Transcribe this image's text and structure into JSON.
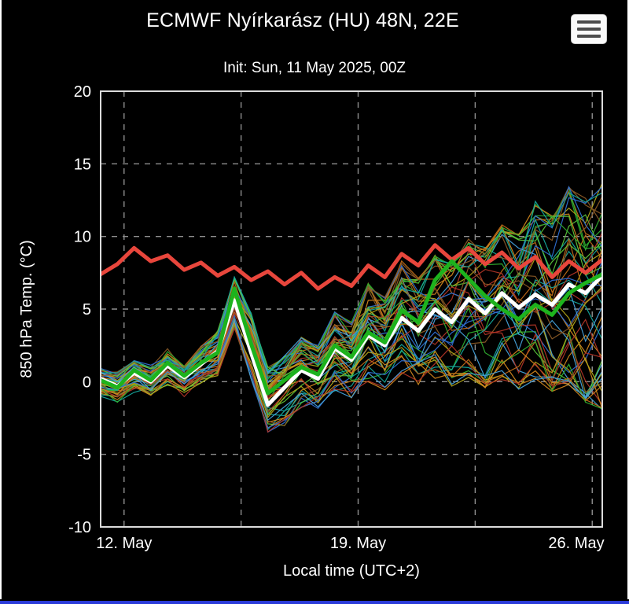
{
  "theme": {
    "background": "#000000",
    "text_color": "#ffffff",
    "accent_bar_color": "#2b3bd8",
    "menu_button_bg": "#fafafa",
    "menu_button_stripe_color": "#4d4d4d",
    "grid_color": "#8f8f8f",
    "plot_border_color": "#dcdcdc"
  },
  "header": {
    "menu_icon": "hamburger"
  },
  "chart_data": {
    "type": "line",
    "title": "ECMWF Nyírkarász (HU) 48N, 22E",
    "subtitle": "Init: Sun, 11 May 2025, 00Z",
    "xlabel": "Local time (UTC+2)",
    "ylabel": "850 hPa Temp. (°C)",
    "x_domain_days": [
      0.3,
      15.3
    ],
    "ylim": [
      -10,
      20
    ],
    "y_ticks": [
      20,
      15,
      10,
      5,
      0,
      -5,
      -10
    ],
    "x_ticks": [
      {
        "t": 1,
        "label": "12. May"
      },
      {
        "t": 8,
        "label": "19. May"
      },
      {
        "t": 15,
        "label": "26. May"
      }
    ],
    "x_gridlines_t": [
      1,
      4.5,
      8,
      11.5,
      15
    ],
    "grid_color": "#8f8f8f",
    "legend": "none",
    "t": [
      0.3,
      0.8,
      1.3,
      1.8,
      2.3,
      2.8,
      3.3,
      3.8,
      4.3,
      4.8,
      5.3,
      5.8,
      6.3,
      6.8,
      7.3,
      7.8,
      8.3,
      8.8,
      9.3,
      9.8,
      10.3,
      10.8,
      11.3,
      11.8,
      12.3,
      12.8,
      13.3,
      13.8,
      14.3,
      14.8,
      15.3
    ],
    "highlight_series": [
      {
        "name": "thick-red",
        "color": "#e8463c",
        "width": 5,
        "values": [
          7.4,
          8.1,
          9.2,
          8.3,
          8.7,
          7.7,
          8.2,
          7.3,
          7.9,
          7.0,
          7.6,
          6.7,
          7.5,
          6.4,
          7.2,
          6.6,
          8.0,
          7.2,
          8.8,
          8.0,
          9.4,
          8.4,
          9.2,
          8.1,
          8.9,
          7.8,
          8.6,
          7.2,
          8.3,
          7.5,
          8.4
        ]
      },
      {
        "name": "thick-white",
        "color": "#ffffff",
        "width": 5,
        "values": [
          0.2,
          -0.3,
          0.6,
          0.0,
          1.1,
          0.3,
          1.2,
          2.1,
          5.6,
          2.0,
          -1.6,
          -0.4,
          0.8,
          0.2,
          2.3,
          1.5,
          3.2,
          2.5,
          4.4,
          3.5,
          5.0,
          4.1,
          5.7,
          4.7,
          6.1,
          5.1,
          6.0,
          5.3,
          6.7,
          6.1,
          7.3
        ]
      },
      {
        "name": "thick-green",
        "color": "#1db31d",
        "width": 5,
        "values": [
          0.1,
          -0.4,
          0.8,
          0.1,
          1.3,
          0.4,
          1.3,
          2.0,
          6.4,
          2.6,
          -0.8,
          0.1,
          1.0,
          0.5,
          2.5,
          1.7,
          3.4,
          2.7,
          4.9,
          4.1,
          7.0,
          8.3,
          7.1,
          5.9,
          5.0,
          4.3,
          5.3,
          4.6,
          6.1,
          6.8,
          7.4
        ]
      }
    ],
    "ensemble": {
      "member_count": 48,
      "line_width": 1.2,
      "seed": 20250511,
      "colors": [
        "#2fae2f",
        "#d0861d",
        "#2e6fd2",
        "#15a79b",
        "#b23527",
        "#b2a418",
        "#45a0d8",
        "#8a5a26",
        "#58c23a",
        "#c06a18"
      ],
      "envelope": {
        "min": [
          -0.8,
          -1.2,
          -0.5,
          -0.9,
          0.0,
          -0.8,
          0.0,
          0.4,
          3.8,
          0.4,
          -3.4,
          -2.8,
          -1.6,
          -1.8,
          -0.6,
          -1.0,
          0.0,
          -0.6,
          0.4,
          -0.2,
          0.4,
          -0.2,
          0.4,
          -0.2,
          0.3,
          -0.3,
          0.3,
          -0.5,
          0.0,
          -1.2,
          -1.8
        ],
        "max": [
          0.9,
          0.5,
          1.5,
          0.9,
          2.1,
          1.2,
          2.3,
          3.3,
          7.0,
          4.6,
          0.8,
          1.6,
          2.9,
          2.3,
          4.6,
          4.0,
          6.6,
          5.6,
          8.1,
          7.0,
          8.6,
          8.0,
          9.6,
          9.0,
          10.6,
          10.0,
          12.2,
          11.2,
          13.2,
          12.4,
          13.6
        ]
      }
    }
  }
}
